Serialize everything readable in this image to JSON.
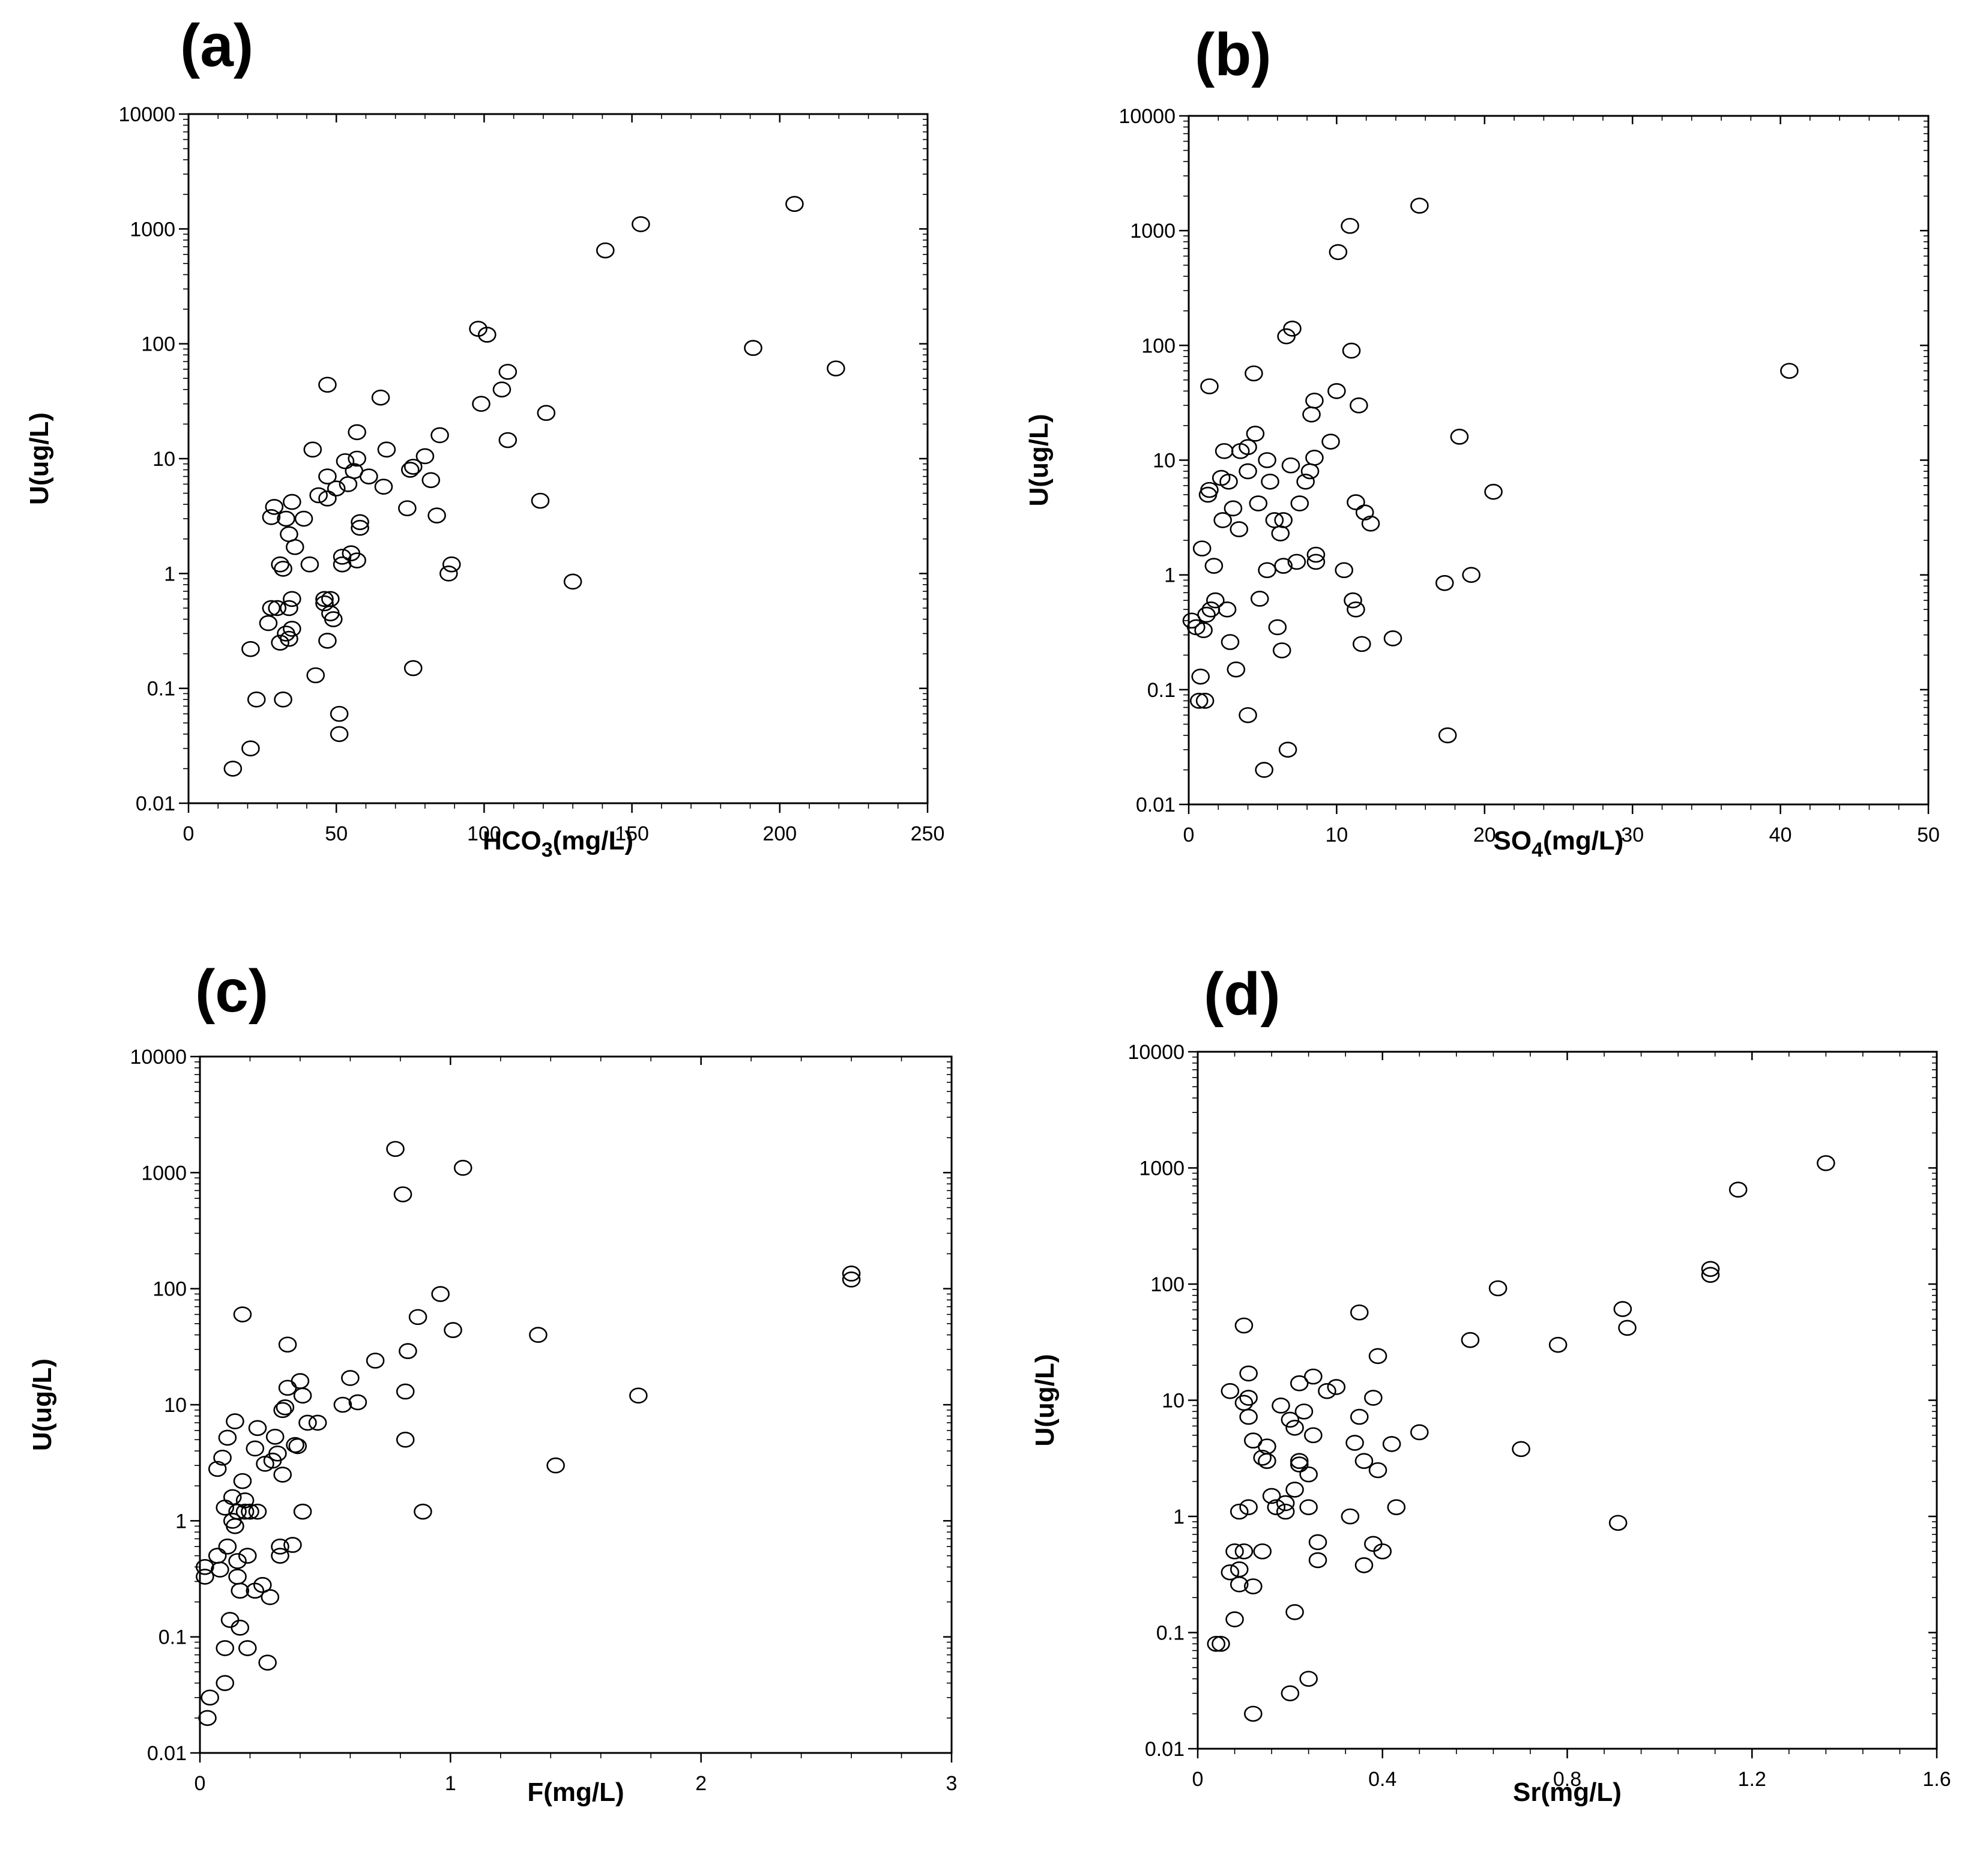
{
  "chart_data": [
    {
      "type": "scatter",
      "panel_label": "(a)",
      "xlabel": "HCO",
      "xlabel_sub": "3",
      "xlabel_suffix": "(mg/L)",
      "ylabel": "U(ug/L)",
      "x_range": [
        0,
        250
      ],
      "x_ticks": [
        "0",
        "50",
        "100",
        "150",
        "200",
        "250"
      ],
      "y_range": [
        0.01,
        10000
      ],
      "y_scale": "log",
      "y_ticks": [
        "0.01",
        "0.1",
        "1",
        "10",
        "100",
        "1000",
        "10000"
      ],
      "points": [
        [
          15,
          0.02
        ],
        [
          21,
          0.03
        ],
        [
          21,
          0.22
        ],
        [
          23,
          0.08
        ],
        [
          27,
          0.37
        ],
        [
          28,
          0.5
        ],
        [
          28,
          3.1
        ],
        [
          29,
          3.8
        ],
        [
          30,
          0.5
        ],
        [
          31,
          0.25
        ],
        [
          31,
          1.2
        ],
        [
          32,
          1.1
        ],
        [
          32,
          0.08
        ],
        [
          33,
          0.3
        ],
        [
          33,
          3
        ],
        [
          34,
          0.5
        ],
        [
          34,
          0.27
        ],
        [
          34,
          2.2
        ],
        [
          35,
          0.33
        ],
        [
          35,
          0.6
        ],
        [
          35,
          4.2
        ],
        [
          36,
          1.7
        ],
        [
          39,
          3
        ],
        [
          41,
          1.2
        ],
        [
          42,
          12
        ],
        [
          43,
          0.13
        ],
        [
          44,
          4.8
        ],
        [
          46,
          0.6
        ],
        [
          46,
          0.55
        ],
        [
          47,
          44
        ],
        [
          47,
          4.5
        ],
        [
          47,
          7
        ],
        [
          47,
          0.26
        ],
        [
          48,
          0.45
        ],
        [
          48,
          0.6
        ],
        [
          49,
          0.4
        ],
        [
          50,
          5.5
        ],
        [
          51,
          0.06
        ],
        [
          51,
          0.04
        ],
        [
          52,
          1.2
        ],
        [
          52,
          1.4
        ],
        [
          53,
          9.5
        ],
        [
          54,
          6
        ],
        [
          55,
          1.5
        ],
        [
          56,
          7.8
        ],
        [
          57,
          1.3
        ],
        [
          57,
          17
        ],
        [
          57,
          10
        ],
        [
          58,
          2.5
        ],
        [
          58,
          2.8
        ],
        [
          61,
          7
        ],
        [
          65,
          34
        ],
        [
          66,
          5.7
        ],
        [
          67,
          12
        ],
        [
          74,
          3.7
        ],
        [
          75,
          8
        ],
        [
          76,
          8.5
        ],
        [
          76,
          0.15
        ],
        [
          80,
          10.5
        ],
        [
          82,
          6.5
        ],
        [
          84,
          3.2
        ],
        [
          85,
          16
        ],
        [
          88,
          1
        ],
        [
          89,
          1.2
        ],
        [
          98,
          135
        ],
        [
          99,
          30
        ],
        [
          101,
          120
        ],
        [
          106,
          40
        ],
        [
          108,
          57
        ],
        [
          108,
          14.5
        ],
        [
          119,
          4.3
        ],
        [
          121,
          25
        ],
        [
          130,
          0.85
        ],
        [
          141,
          650
        ],
        [
          153,
          1100
        ],
        [
          191,
          92
        ],
        [
          205,
          1650
        ],
        [
          219,
          61
        ]
      ]
    },
    {
      "type": "scatter",
      "panel_label": "(b)",
      "xlabel": "SO",
      "xlabel_sub": "4",
      "xlabel_suffix": "(mg/L)",
      "ylabel": "U(ug/L)",
      "x_range": [
        0,
        50
      ],
      "x_ticks": [
        "0",
        "10",
        "20",
        "30",
        "40",
        "50"
      ],
      "y_range": [
        0.01,
        10000
      ],
      "y_scale": "log",
      "y_ticks": [
        "0.01",
        "0.1",
        "1",
        "10",
        "100",
        "1000",
        "10000"
      ],
      "points": [
        [
          0.2,
          0.4
        ],
        [
          0.5,
          0.35
        ],
        [
          0.7,
          0.08
        ],
        [
          0.8,
          0.13
        ],
        [
          0.9,
          1.7
        ],
        [
          1,
          0.33
        ],
        [
          1.1,
          0.08
        ],
        [
          1.2,
          0.45
        ],
        [
          1.3,
          5
        ],
        [
          1.4,
          5.5
        ],
        [
          1.4,
          44
        ],
        [
          1.5,
          0.5
        ],
        [
          1.7,
          1.2
        ],
        [
          1.8,
          0.6
        ],
        [
          2.2,
          7
        ],
        [
          2.3,
          3
        ],
        [
          2.4,
          12
        ],
        [
          2.6,
          0.5
        ],
        [
          2.7,
          6.5
        ],
        [
          2.8,
          0.26
        ],
        [
          3,
          3.8
        ],
        [
          3.2,
          0.15
        ],
        [
          3.4,
          2.5
        ],
        [
          3.5,
          12
        ],
        [
          4,
          0.06
        ],
        [
          4,
          8
        ],
        [
          4,
          13
        ],
        [
          4.4,
          57
        ],
        [
          4.5,
          17
        ],
        [
          4.7,
          4.2
        ],
        [
          4.8,
          0.62
        ],
        [
          5.1,
          0.02
        ],
        [
          5.3,
          1.1
        ],
        [
          5.3,
          10
        ],
        [
          5.5,
          6.5
        ],
        [
          5.8,
          3
        ],
        [
          6,
          0.35
        ],
        [
          6.2,
          2.3
        ],
        [
          6.3,
          0.22
        ],
        [
          6.4,
          1.2
        ],
        [
          6.4,
          3
        ],
        [
          6.6,
          120
        ],
        [
          6.7,
          0.03
        ],
        [
          6.9,
          9
        ],
        [
          7,
          140
        ],
        [
          7.3,
          1.3
        ],
        [
          7.5,
          4.2
        ],
        [
          7.9,
          6.5
        ],
        [
          8.2,
          8
        ],
        [
          8.3,
          25
        ],
        [
          8.5,
          33
        ],
        [
          8.5,
          10.5
        ],
        [
          8.6,
          1.3
        ],
        [
          8.6,
          1.5
        ],
        [
          9.6,
          14.5
        ],
        [
          10,
          40
        ],
        [
          10.1,
          650
        ],
        [
          10.5,
          1.1
        ],
        [
          10.9,
          1100
        ],
        [
          11,
          90
        ],
        [
          11.1,
          0.6
        ],
        [
          11.3,
          4.3
        ],
        [
          11.3,
          0.5
        ],
        [
          11.5,
          30
        ],
        [
          11.7,
          0.25
        ],
        [
          11.9,
          3.5
        ],
        [
          12.3,
          2.8
        ],
        [
          13.8,
          0.28
        ],
        [
          15.6,
          1650
        ],
        [
          17.3,
          0.85
        ],
        [
          17.5,
          0.04
        ],
        [
          18.3,
          16
        ],
        [
          19.1,
          1
        ],
        [
          20.6,
          5.3
        ],
        [
          40.6,
          60
        ]
      ]
    },
    {
      "type": "scatter",
      "panel_label": "(c)",
      "xlabel": "F",
      "xlabel_sub": "",
      "xlabel_suffix": "(mg/L)",
      "ylabel": "U(ug/L)",
      "x_range": [
        0,
        3
      ],
      "x_ticks": [
        "0",
        "1",
        "2",
        "3"
      ],
      "y_range": [
        0.01,
        10000
      ],
      "y_scale": "log",
      "y_ticks": [
        "0.01",
        "0.1",
        "1",
        "10",
        "100",
        "1000",
        "10000"
      ],
      "points": [
        [
          0.02,
          0.4
        ],
        [
          0.02,
          0.33
        ],
        [
          0.03,
          0.02
        ],
        [
          0.04,
          0.03
        ],
        [
          0.07,
          2.8
        ],
        [
          0.07,
          0.5
        ],
        [
          0.08,
          0.38
        ],
        [
          0.09,
          3.5
        ],
        [
          0.1,
          0.08
        ],
        [
          0.1,
          0.04
        ],
        [
          0.1,
          1.3
        ],
        [
          0.11,
          0.6
        ],
        [
          0.11,
          5.2
        ],
        [
          0.12,
          0.14
        ],
        [
          0.13,
          1.6
        ],
        [
          0.13,
          1
        ],
        [
          0.14,
          7.2
        ],
        [
          0.14,
          0.9
        ],
        [
          0.15,
          0.45
        ],
        [
          0.15,
          0.33
        ],
        [
          0.15,
          1.2
        ],
        [
          0.16,
          0.25
        ],
        [
          0.16,
          0.12
        ],
        [
          0.17,
          60
        ],
        [
          0.17,
          2.2
        ],
        [
          0.18,
          1.5
        ],
        [
          0.18,
          1.2
        ],
        [
          0.19,
          0.08
        ],
        [
          0.19,
          0.5
        ],
        [
          0.2,
          1.2
        ],
        [
          0.22,
          4.2
        ],
        [
          0.22,
          0.25
        ],
        [
          0.23,
          6.3
        ],
        [
          0.23,
          1.2
        ],
        [
          0.25,
          0.28
        ],
        [
          0.26,
          3.1
        ],
        [
          0.27,
          0.06
        ],
        [
          0.28,
          0.22
        ],
        [
          0.29,
          3.3
        ],
        [
          0.3,
          5.3
        ],
        [
          0.31,
          3.8
        ],
        [
          0.32,
          0.5
        ],
        [
          0.32,
          0.6
        ],
        [
          0.33,
          9
        ],
        [
          0.33,
          2.5
        ],
        [
          0.34,
          9.5
        ],
        [
          0.35,
          33
        ],
        [
          0.35,
          14
        ],
        [
          0.37,
          0.62
        ],
        [
          0.38,
          4.5
        ],
        [
          0.39,
          4.4
        ],
        [
          0.4,
          16
        ],
        [
          0.41,
          12
        ],
        [
          0.41,
          1.2
        ],
        [
          0.43,
          7
        ],
        [
          0.47,
          7
        ],
        [
          0.57,
          10
        ],
        [
          0.6,
          17
        ],
        [
          0.63,
          10.5
        ],
        [
          0.7,
          24
        ],
        [
          0.78,
          1600
        ],
        [
          0.81,
          650
        ],
        [
          0.82,
          5
        ],
        [
          0.82,
          13
        ],
        [
          0.83,
          29
        ],
        [
          0.87,
          57
        ],
        [
          0.89,
          1.2
        ],
        [
          0.96,
          90
        ],
        [
          1.01,
          44
        ],
        [
          1.05,
          1100
        ],
        [
          1.35,
          40
        ],
        [
          1.42,
          3
        ],
        [
          1.75,
          12
        ],
        [
          2.6,
          135
        ],
        [
          2.6,
          120
        ]
      ]
    },
    {
      "type": "scatter",
      "panel_label": "(d)",
      "xlabel": "Sr",
      "xlabel_sub": "",
      "xlabel_suffix": "(mg/L)",
      "ylabel": "U(ug/L)",
      "x_range": [
        0,
        1.6
      ],
      "x_ticks": [
        "0",
        "0.4",
        "0.8",
        "1.2",
        "1.6"
      ],
      "y_range": [
        0.01,
        10000
      ],
      "y_scale": "log",
      "y_ticks": [
        "0.01",
        "0.1",
        "1",
        "10",
        "100",
        "1000",
        "10000"
      ],
      "points": [
        [
          0.04,
          0.08
        ],
        [
          0.05,
          0.08
        ],
        [
          0.07,
          12
        ],
        [
          0.07,
          0.33
        ],
        [
          0.08,
          0.5
        ],
        [
          0.08,
          0.13
        ],
        [
          0.09,
          1.1
        ],
        [
          0.09,
          0.35
        ],
        [
          0.09,
          0.26
        ],
        [
          0.1,
          9.5
        ],
        [
          0.1,
          44
        ],
        [
          0.1,
          0.5
        ],
        [
          0.11,
          10.5
        ],
        [
          0.11,
          1.2
        ],
        [
          0.11,
          17
        ],
        [
          0.11,
          7.2
        ],
        [
          0.12,
          0.02
        ],
        [
          0.12,
          0.25
        ],
        [
          0.12,
          4.5
        ],
        [
          0.14,
          3.2
        ],
        [
          0.14,
          0.5
        ],
        [
          0.15,
          4
        ],
        [
          0.15,
          3
        ],
        [
          0.16,
          1.5
        ],
        [
          0.17,
          1.2
        ],
        [
          0.18,
          9
        ],
        [
          0.19,
          1.3
        ],
        [
          0.19,
          1.1
        ],
        [
          0.2,
          0.03
        ],
        [
          0.2,
          6.8
        ],
        [
          0.21,
          5.8
        ],
        [
          0.21,
          1.7
        ],
        [
          0.21,
          0.15
        ],
        [
          0.22,
          14
        ],
        [
          0.22,
          3
        ],
        [
          0.22,
          2.8
        ],
        [
          0.23,
          8
        ],
        [
          0.24,
          2.3
        ],
        [
          0.24,
          1.2
        ],
        [
          0.24,
          0.04
        ],
        [
          0.25,
          5
        ],
        [
          0.25,
          16
        ],
        [
          0.26,
          0.6
        ],
        [
          0.26,
          0.42
        ],
        [
          0.28,
          12
        ],
        [
          0.3,
          13
        ],
        [
          0.33,
          1
        ],
        [
          0.34,
          4.3
        ],
        [
          0.35,
          7.2
        ],
        [
          0.35,
          57
        ],
        [
          0.36,
          3
        ],
        [
          0.36,
          0.38
        ],
        [
          0.38,
          10.5
        ],
        [
          0.38,
          0.58
        ],
        [
          0.39,
          2.5
        ],
        [
          0.39,
          24
        ],
        [
          0.4,
          0.5
        ],
        [
          0.42,
          4.2
        ],
        [
          0.43,
          1.2
        ],
        [
          0.48,
          5.3
        ],
        [
          0.59,
          33
        ],
        [
          0.65,
          92
        ],
        [
          0.7,
          3.8
        ],
        [
          0.78,
          30
        ],
        [
          0.91,
          0.88
        ],
        [
          0.92,
          61
        ],
        [
          0.93,
          42
        ],
        [
          1.11,
          135
        ],
        [
          1.11,
          120
        ],
        [
          1.17,
          650
        ],
        [
          1.36,
          1100
        ]
      ]
    }
  ]
}
